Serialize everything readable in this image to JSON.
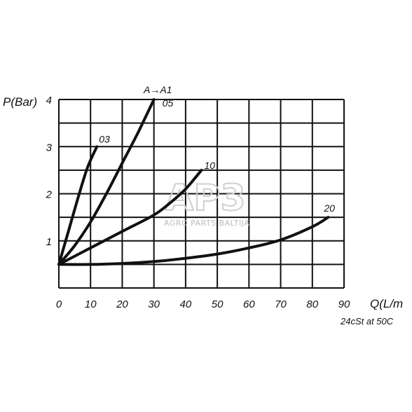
{
  "chart_data": {
    "type": "line",
    "ylabel": "P(Bar)",
    "xlabel": "Q(L/m",
    "xlim": [
      0,
      90
    ],
    "ylim": [
      0,
      4
    ],
    "x_ticks": [
      "0",
      "10",
      "20",
      "30",
      "40",
      "50",
      "60",
      "70",
      "80",
      "90"
    ],
    "y_ticks": [
      "1",
      "2",
      "3",
      "4"
    ],
    "grid": true,
    "flow_label": "A→A1",
    "note": "24cSt at 50C",
    "series": [
      {
        "name": "03",
        "x": [
          0,
          3,
          6,
          9,
          12
        ],
        "y": [
          0.5,
          1.2,
          1.9,
          2.55,
          3.0
        ]
      },
      {
        "name": "05",
        "x": [
          0,
          5,
          10,
          15,
          20,
          25,
          30
        ],
        "y": [
          0.5,
          0.9,
          1.4,
          2.0,
          2.65,
          3.3,
          4.0
        ]
      },
      {
        "name": "10",
        "x": [
          0,
          10,
          20,
          30,
          35,
          40,
          45
        ],
        "y": [
          0.5,
          0.85,
          1.2,
          1.55,
          1.8,
          2.1,
          2.5
        ]
      },
      {
        "name": "20",
        "x": [
          0,
          10,
          20,
          30,
          40,
          50,
          60,
          70,
          80,
          85
        ],
        "y": [
          0.5,
          0.5,
          0.52,
          0.56,
          0.63,
          0.72,
          0.85,
          1.02,
          1.3,
          1.5
        ]
      }
    ]
  },
  "watermark": {
    "logo": "AP3",
    "text": "AGRO PARTS BALTIJA"
  }
}
